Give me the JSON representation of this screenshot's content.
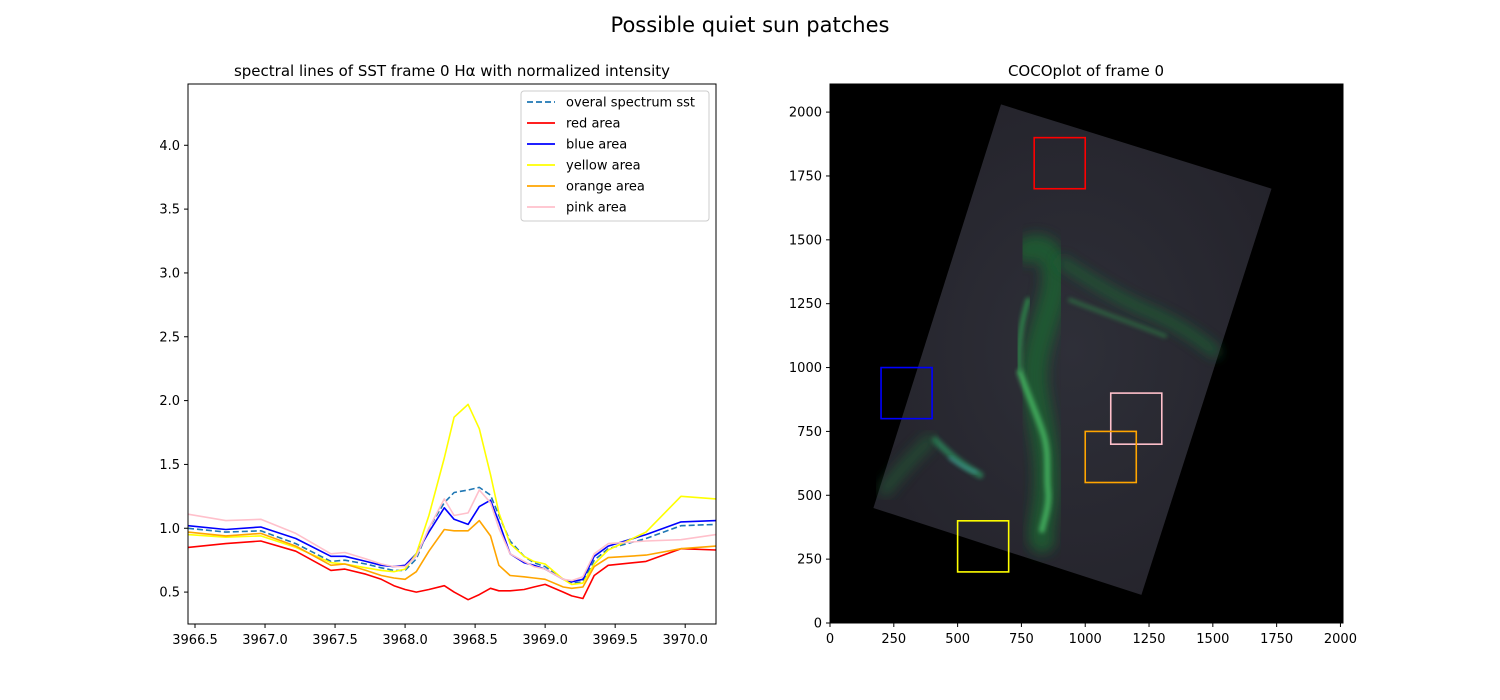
{
  "figure": {
    "suptitle": "Possible quiet sun patches"
  },
  "chart_data": [
    {
      "type": "line",
      "title": "spectral lines of SST frame 0 Hα with normalized intensity",
      "xlabel": "",
      "ylabel": "",
      "xlim": [
        3966.45,
        3970.22
      ],
      "ylim": [
        0.25,
        4.48
      ],
      "xticks": [
        3966.5,
        3967.0,
        3967.5,
        3968.0,
        3968.5,
        3969.0,
        3969.5,
        3970.0
      ],
      "xtick_labels": [
        "3966.5",
        "3967.0",
        "3967.5",
        "3968.0",
        "3968.5",
        "3969.0",
        "3969.5",
        "3970.0"
      ],
      "yticks": [
        0.5,
        1.0,
        1.5,
        2.0,
        2.5,
        3.0,
        3.5,
        4.0
      ],
      "ytick_labels": [
        "0.5",
        "1.0",
        "1.5",
        "2.0",
        "2.5",
        "3.0",
        "3.5",
        "4.0"
      ],
      "legend_position": "top-right",
      "x": [
        3966.45,
        3966.72,
        3966.97,
        3967.22,
        3967.47,
        3967.57,
        3967.72,
        3967.83,
        3967.92,
        3968.0,
        3968.08,
        3968.17,
        3968.28,
        3968.35,
        3968.45,
        3968.53,
        3968.61,
        3968.67,
        3968.75,
        3968.85,
        3968.92,
        3969.0,
        3969.13,
        3969.19,
        3969.27,
        3969.35,
        3969.45,
        3969.72,
        3969.97,
        3970.22
      ],
      "series": [
        {
          "name": "overal spectrum sst",
          "color": "#1f77b4",
          "dashed": true,
          "values": [
            1.0,
            0.97,
            0.98,
            0.88,
            0.74,
            0.75,
            0.72,
            0.69,
            0.67,
            0.67,
            0.76,
            1.0,
            1.2,
            1.28,
            1.3,
            1.32,
            1.26,
            1.1,
            0.9,
            0.78,
            0.73,
            0.7,
            0.6,
            0.57,
            0.58,
            0.75,
            0.84,
            0.92,
            1.02,
            1.03
          ]
        },
        {
          "name": "red area",
          "color": "#ff0000",
          "dashed": false,
          "values": [
            0.85,
            0.88,
            0.9,
            0.82,
            0.67,
            0.68,
            0.64,
            0.6,
            0.55,
            0.52,
            0.5,
            0.52,
            0.55,
            0.5,
            0.44,
            0.48,
            0.53,
            0.51,
            0.51,
            0.52,
            0.54,
            0.56,
            0.5,
            0.47,
            0.45,
            0.63,
            0.71,
            0.74,
            0.84,
            0.83
          ]
        },
        {
          "name": "blue area",
          "color": "#0000ff",
          "dashed": false,
          "values": [
            1.02,
            0.99,
            1.01,
            0.92,
            0.78,
            0.78,
            0.74,
            0.71,
            0.7,
            0.71,
            0.8,
            0.97,
            1.16,
            1.07,
            1.03,
            1.17,
            1.22,
            1.05,
            0.8,
            0.73,
            0.71,
            0.68,
            0.6,
            0.58,
            0.6,
            0.78,
            0.86,
            0.95,
            1.05,
            1.06
          ]
        },
        {
          "name": "yellow area",
          "color": "#ffff00",
          "dashed": false,
          "values": [
            0.95,
            0.93,
            0.94,
            0.85,
            0.73,
            0.72,
            0.69,
            0.67,
            0.66,
            0.68,
            0.8,
            1.1,
            1.55,
            1.87,
            1.97,
            1.78,
            1.42,
            1.12,
            0.88,
            0.78,
            0.74,
            0.72,
            0.6,
            0.56,
            0.57,
            0.72,
            0.83,
            0.97,
            1.25,
            1.23
          ]
        },
        {
          "name": "orange area",
          "color": "#ffa500",
          "dashed": false,
          "values": [
            0.97,
            0.94,
            0.96,
            0.86,
            0.71,
            0.72,
            0.67,
            0.63,
            0.61,
            0.6,
            0.66,
            0.82,
            0.99,
            0.98,
            0.98,
            1.06,
            0.94,
            0.71,
            0.63,
            0.62,
            0.61,
            0.6,
            0.54,
            0.53,
            0.54,
            0.7,
            0.77,
            0.79,
            0.84,
            0.86
          ]
        },
        {
          "name": "pink area",
          "color": "#ffc0cb",
          "dashed": false,
          "values": [
            1.11,
            1.06,
            1.07,
            0.96,
            0.8,
            0.81,
            0.76,
            0.72,
            0.7,
            0.7,
            0.78,
            1.0,
            1.23,
            1.1,
            1.12,
            1.3,
            1.2,
            1.0,
            0.8,
            0.74,
            0.7,
            0.68,
            0.6,
            0.59,
            0.62,
            0.8,
            0.88,
            0.9,
            0.91,
            0.95
          ]
        }
      ]
    },
    {
      "type": "image",
      "title": "COCOplot of frame 0",
      "xlim": [
        0,
        2010
      ],
      "ylim": [
        0,
        2110
      ],
      "xticks": [
        0,
        250,
        500,
        750,
        1000,
        1250,
        1500,
        1750,
        2000
      ],
      "xtick_labels": [
        "0",
        "250",
        "500",
        "750",
        "1000",
        "1250",
        "1500",
        "1750",
        "2000"
      ],
      "yticks": [
        0,
        250,
        500,
        750,
        1000,
        1250,
        1500,
        1750,
        2000
      ],
      "ytick_labels": [
        "0",
        "250",
        "500",
        "750",
        "1000",
        "1250",
        "1500",
        "1750",
        "2000"
      ],
      "background_color": "#000000",
      "field_corners": [
        [
          170,
          450
        ],
        [
          670,
          2030
        ],
        [
          1730,
          1700
        ],
        [
          1220,
          110
        ]
      ],
      "rectangles": [
        {
          "name": "red",
          "color": "#ff0000",
          "x0": 800,
          "y0": 1700,
          "x1": 1000,
          "y1": 1900
        },
        {
          "name": "blue",
          "color": "#0000ff",
          "x0": 200,
          "y0": 800,
          "x1": 400,
          "y1": 1000
        },
        {
          "name": "pink",
          "color": "#ffc0cb",
          "x0": 1100,
          "y0": 700,
          "x1": 1300,
          "y1": 900
        },
        {
          "name": "orange",
          "color": "#ffa500",
          "x0": 1000,
          "y0": 550,
          "x1": 1200,
          "y1": 750
        },
        {
          "name": "yellow",
          "color": "#ffff00",
          "x0": 500,
          "y0": 200,
          "x1": 700,
          "y1": 400
        }
      ]
    }
  ]
}
